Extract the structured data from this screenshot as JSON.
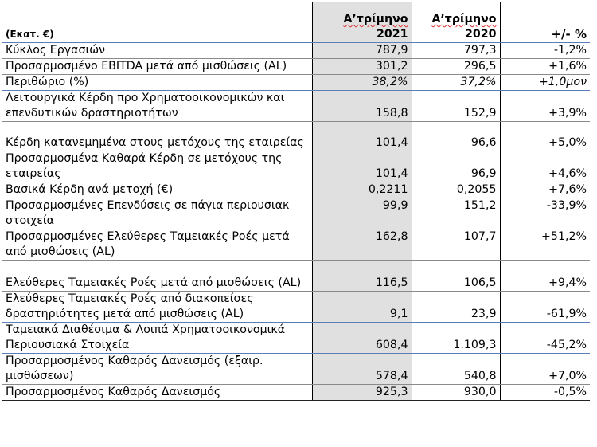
{
  "header": {
    "unit_label": "(Εκατ. €)",
    "col1_line1": "Α’τρίμηνο",
    "col1_line2": "2021",
    "col2_line1": "Α’τρίμηνο",
    "col2_line2": "2020",
    "col3": "+/- %"
  },
  "rows": [
    {
      "label": "Κύκλος Εργασιών",
      "v2021": "787,9",
      "v2020": "797,3",
      "change": "-1,2%"
    },
    {
      "label": "Προσαρμοσμένο EBITDA μετά από μισθώσεις (AL)",
      "v2021": "301,2",
      "v2020": "296,5",
      "change": "+1,6%"
    },
    {
      "label": "Περιθώριο (%)",
      "v2021": "38,2%",
      "v2020": "37,2%",
      "change": "+1,0μον"
    },
    {
      "label": "Λειτουργικά Κέρδη προ Χρηματοοικονομικών και επενδυτικών δραστηριοτήτων",
      "v2021": "158,8",
      "v2020": "152,9",
      "change": "+3,9%"
    },
    {
      "label": "Κέρδη κατανεμημένα στους μετόχους της εταιρείας",
      "v2021": "101,4",
      "v2020": "96,6",
      "change": "+5,0%"
    },
    {
      "label": "Προσαρμοσμένα Καθαρά Κέρδη σε μετόχους της εταιρείας",
      "v2021": "101,4",
      "v2020": "96,9",
      "change": "+4,6%"
    },
    {
      "label": "Βασικά Κέρδη ανά μετοχή (€)",
      "v2021": "0,2211",
      "v2020": "0,2055",
      "change": "+7,6%"
    },
    {
      "label": "Προσαρμοσμένες Επενδύσεις σε πάγια περιουσιακ στοιχεία",
      "v2021": "99,9",
      "v2020": "151,2",
      "change": "-33,9%"
    },
    {
      "label": "Προσαρμοσμένες  Ελεύθερες Ταμειακές Ροές μετά από μισθώσεις (AL)",
      "v2021": "162,8",
      "v2020": "107,7",
      "change": "+51,2%"
    },
    {
      "label": "Ελεύθερες Ταμειακές Ροές μετά από μισθώσεις (AL)",
      "v2021": "116,5",
      "v2020": "106,5",
      "change": "+9,4%"
    },
    {
      "label": "Ελεύθερες Ταμειακές Ροές από διακοπείσες δραστηριότητες μετά από μισθώσεις (AL)",
      "v2021": "9,1",
      "v2020": "23,9",
      "change": "-61,9%"
    },
    {
      "label": "Ταμειακά Διαθέσιμα & Λοιπά Χρηματοοικονομικά Περιουσιακά Στοιχεία",
      "v2021": "608,4",
      "v2020": "1.109,3",
      "change": "-45,2%"
    },
    {
      "label": "Προσαρμοσμένος Καθαρός Δανεισμός (εξαιρ. μισθώσεων)",
      "v2021": "578,4",
      "v2020": "540,8",
      "change": "+7,0%"
    },
    {
      "label": "Προσαρμοσμένος Καθαρός Δανεισμός",
      "v2021": "925,3",
      "v2020": "930,0",
      "change": "-0,5%"
    }
  ]
}
